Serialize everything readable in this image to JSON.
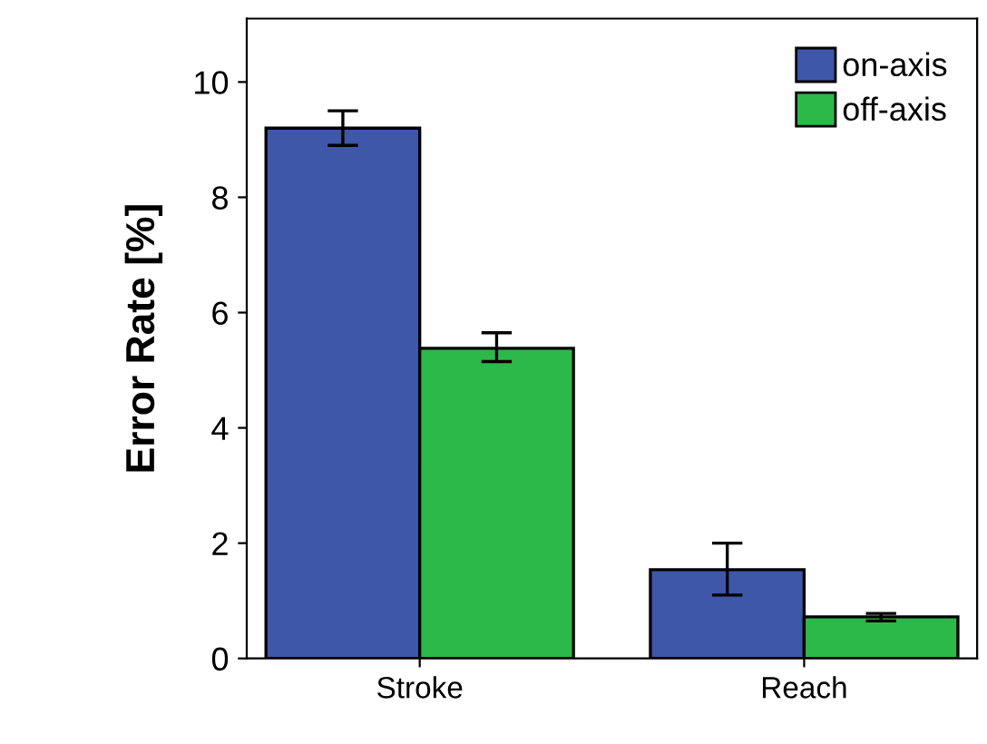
{
  "chart_data": {
    "type": "bar",
    "ylabel": "Error Rate [%]",
    "categories": [
      "Stroke",
      "Reach"
    ],
    "series": [
      {
        "name": "on-axis",
        "color": "#3f57a8",
        "values": [
          9.2,
          1.54
        ],
        "errors": [
          [
            8.9,
            9.5
          ],
          [
            1.1,
            2.0
          ]
        ]
      },
      {
        "name": "off-axis",
        "color": "#2db84a",
        "values": [
          5.38,
          0.72
        ],
        "errors": [
          [
            5.15,
            5.65
          ],
          [
            0.65,
            0.78
          ]
        ]
      }
    ],
    "ylim": [
      0,
      11.1
    ],
    "yticks": [
      0,
      2,
      4,
      6,
      8,
      10
    ],
    "grid": false,
    "legend": "top right"
  }
}
